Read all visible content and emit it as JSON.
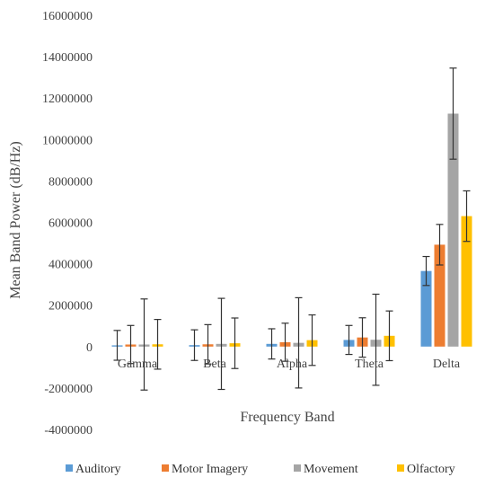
{
  "chart_data": {
    "type": "bar",
    "title": "",
    "xlabel": "Frequency Band",
    "ylabel": "Mean Band Power (dB/Hz)",
    "ylim": [
      -4000000,
      16000000
    ],
    "ytick_step": 2000000,
    "ytick_labels": [
      "-4000000",
      "-2000000",
      "0",
      "2000000",
      "4000000",
      "6000000",
      "8000000",
      "10000000",
      "12000000",
      "14000000",
      "16000000"
    ],
    "grid": false,
    "legend_position": "bottom",
    "categories": [
      "Gamma",
      "Beta",
      "Alpha",
      "Theta",
      "Delta"
    ],
    "series": [
      {
        "name": "Auditory",
        "color": "#5B9BD5",
        "values": [
          60000,
          70000,
          130000,
          320000,
          3650000
        ],
        "errors": [
          720000,
          740000,
          730000,
          700000,
          700000
        ]
      },
      {
        "name": "Motor Imagery",
        "color": "#ED7D31",
        "values": [
          100000,
          110000,
          210000,
          440000,
          4920000
        ],
        "errors": [
          920000,
          950000,
          920000,
          950000,
          980000
        ]
      },
      {
        "name": "Movement",
        "color": "#A5A5A5",
        "values": [
          100000,
          130000,
          180000,
          330000,
          11250000
        ],
        "errors": [
          2200000,
          2200000,
          2180000,
          2200000,
          2200000
        ]
      },
      {
        "name": "Olfactory",
        "color": "#FFC000",
        "values": [
          110000,
          160000,
          310000,
          520000,
          6300000
        ],
        "errors": [
          1200000,
          1220000,
          1220000,
          1200000,
          1220000
        ]
      }
    ]
  }
}
